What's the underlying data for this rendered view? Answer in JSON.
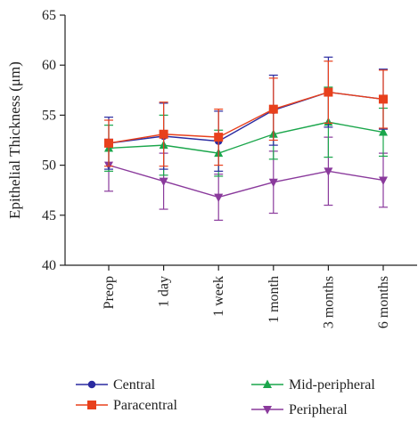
{
  "chart_data": {
    "type": "line",
    "ylabel": "Epithelial Thickness (μm)",
    "ylim": [
      40,
      65
    ],
    "yticks": [
      40,
      45,
      50,
      55,
      60,
      65
    ],
    "categories": [
      "Preop",
      "1 day",
      "1 week",
      "1 month",
      "3 months",
      "6 months"
    ],
    "grid": false,
    "legend_position": "bottom",
    "series": [
      {
        "name": "Central",
        "color": "#2a2aa0",
        "marker": "circle",
        "values": [
          52.2,
          52.9,
          52.4,
          55.5,
          57.3,
          56.6
        ],
        "errors": [
          2.6,
          3.3,
          3.0,
          3.5,
          3.5,
          3.0
        ]
      },
      {
        "name": "Paracentral",
        "color": "#e8401c",
        "marker": "square",
        "values": [
          52.2,
          53.1,
          52.8,
          55.6,
          57.3,
          56.6
        ],
        "errors": [
          2.3,
          3.2,
          2.8,
          3.1,
          3.1,
          2.9
        ]
      },
      {
        "name": "Mid-peripheral",
        "color": "#1aa64b",
        "marker": "triangle-up",
        "values": [
          51.7,
          52.0,
          51.2,
          53.1,
          54.3,
          53.3
        ],
        "errors": [
          2.3,
          3.0,
          2.3,
          2.5,
          3.5,
          2.4
        ]
      },
      {
        "name": "Peripheral",
        "color": "#8a3a9c",
        "marker": "triangle-down",
        "values": [
          50.0,
          48.4,
          46.8,
          48.3,
          49.4,
          48.5
        ],
        "errors": [
          2.6,
          2.8,
          2.3,
          3.1,
          3.4,
          2.7
        ]
      }
    ]
  }
}
